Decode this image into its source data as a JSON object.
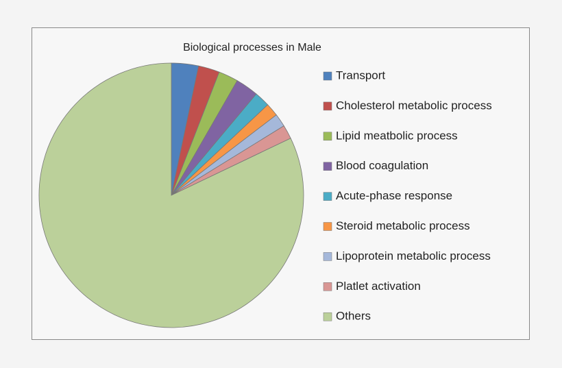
{
  "chart_data": {
    "type": "pie",
    "title": "Biological processes in Male",
    "categories": [
      "Transport",
      "Cholesterol metabolic process",
      "Lipid meatbolic process",
      "Blood coagulation",
      "Acute-phase response",
      "Steroid metabolic process",
      "Lipoprotein metabolic process",
      "Platlet activation",
      "Others"
    ],
    "values": [
      3.3,
      2.6,
      2.4,
      2.8,
      1.9,
      1.6,
      1.6,
      1.7,
      82.1
    ],
    "colors": [
      "#4f81bd",
      "#c0504d",
      "#9bbb59",
      "#8064a2",
      "#4bacc6",
      "#f79646",
      "#a5b8da",
      "#d99694",
      "#bbd09a"
    ],
    "legend": "right"
  }
}
